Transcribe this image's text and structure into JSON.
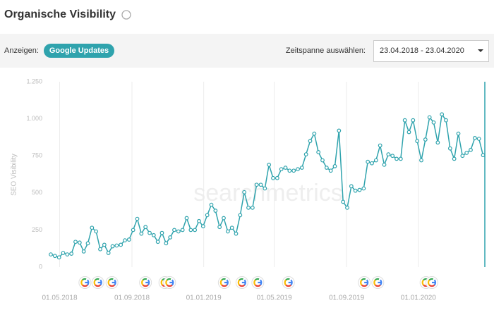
{
  "header": {
    "title": "Organische Visibility"
  },
  "toolbar": {
    "show_label": "Anzeigen:",
    "toggle": "Google Updates",
    "range_label": "Zeitspanne auswählen:",
    "range_value": "23.04.2018 - 23.04.2020"
  },
  "chart_data": {
    "type": "line",
    "ylabel": "SEO Visibility",
    "watermark": "searchmetrics",
    "color": "#2fa3ad",
    "grid": "x",
    "x": [
      "2018-04-16",
      "2018-04-23",
      "2018-04-30",
      "2018-05-07",
      "2018-05-14",
      "2018-05-21",
      "2018-05-28",
      "2018-06-04",
      "2018-06-11",
      "2018-06-18",
      "2018-06-25",
      "2018-07-02",
      "2018-07-09",
      "2018-07-16",
      "2018-07-23",
      "2018-07-30",
      "2018-08-06",
      "2018-08-13",
      "2018-08-20",
      "2018-08-27",
      "2018-09-03",
      "2018-09-10",
      "2018-09-17",
      "2018-09-24",
      "2018-10-01",
      "2018-10-08",
      "2018-10-15",
      "2018-10-22",
      "2018-10-29",
      "2018-11-05",
      "2018-11-12",
      "2018-11-19",
      "2018-11-26",
      "2018-12-03",
      "2018-12-10",
      "2018-12-17",
      "2018-12-24",
      "2018-12-31",
      "2019-01-07",
      "2019-01-14",
      "2019-01-21",
      "2019-01-28",
      "2019-02-04",
      "2019-02-11",
      "2019-02-18",
      "2019-02-25",
      "2019-03-04",
      "2019-03-11",
      "2019-03-18",
      "2019-03-25",
      "2019-04-01",
      "2019-04-08",
      "2019-04-15",
      "2019-04-22",
      "2019-04-29",
      "2019-05-06",
      "2019-05-13",
      "2019-05-20",
      "2019-05-27",
      "2019-06-03",
      "2019-06-10",
      "2019-06-17",
      "2019-06-24",
      "2019-07-01",
      "2019-07-08",
      "2019-07-15",
      "2019-07-22",
      "2019-07-29",
      "2019-08-05",
      "2019-08-12",
      "2019-08-19",
      "2019-08-26",
      "2019-09-02",
      "2019-09-09",
      "2019-09-16",
      "2019-09-23",
      "2019-09-30",
      "2019-10-07",
      "2019-10-14",
      "2019-10-21",
      "2019-10-28",
      "2019-11-04",
      "2019-11-11",
      "2019-11-18",
      "2019-11-25",
      "2019-12-02",
      "2019-12-09",
      "2019-12-16",
      "2019-12-23",
      "2019-12-30",
      "2020-01-06",
      "2020-01-13",
      "2020-01-20",
      "2020-01-27",
      "2020-02-03",
      "2020-02-10",
      "2020-02-17",
      "2020-02-24",
      "2020-03-02",
      "2020-03-09",
      "2020-03-16",
      "2020-03-23",
      "2020-03-30",
      "2020-04-06",
      "2020-04-13",
      "2020-04-20"
    ],
    "values": [
      85,
      75,
      65,
      95,
      85,
      90,
      170,
      165,
      105,
      160,
      265,
      240,
      120,
      150,
      95,
      140,
      145,
      150,
      180,
      185,
      250,
      325,
      225,
      270,
      230,
      215,
      170,
      230,
      160,
      200,
      250,
      240,
      250,
      330,
      250,
      250,
      310,
      275,
      350,
      420,
      380,
      270,
      330,
      240,
      265,
      225,
      350,
      505,
      400,
      400,
      555,
      555,
      530,
      690,
      600,
      600,
      660,
      670,
      650,
      650,
      660,
      670,
      760,
      850,
      900,
      775,
      720,
      670,
      650,
      680,
      920,
      440,
      400,
      545,
      515,
      520,
      530,
      710,
      700,
      720,
      820,
      690,
      760,
      750,
      730,
      730,
      990,
      910,
      990,
      850,
      720,
      860,
      1010,
      975,
      840,
      1030,
      990,
      800,
      730,
      900,
      750,
      770,
      790,
      870,
      865,
      755
    ],
    "xlim": [
      "2018-04-16",
      "2020-04-23"
    ],
    "xticks": [
      {
        "value": "2018-05-01",
        "label": "01.05.2018"
      },
      {
        "value": "2018-09-01",
        "label": "01.09.2018"
      },
      {
        "value": "2019-01-01",
        "label": "01.01.2019"
      },
      {
        "value": "2019-05-01",
        "label": "01.05.2019"
      },
      {
        "value": "2019-09-01",
        "label": "01.09.2019"
      },
      {
        "value": "2020-01-01",
        "label": "01.01.2020"
      }
    ],
    "ylim": [
      0,
      1250
    ],
    "yticks": [
      0,
      250,
      500,
      750,
      {
        "value": 1000,
        "label": "1.000"
      },
      {
        "value": 1250,
        "label": "1.250"
      }
    ],
    "google_updates": [
      "2018-06-13",
      "2018-07-05",
      "2018-07-29",
      "2018-09-24",
      "2018-10-27",
      "2018-11-04",
      "2019-02-05",
      "2019-03-07",
      "2019-04-03",
      "2019-05-25",
      "2019-10-01",
      "2019-10-24",
      "2020-01-14",
      "2020-01-24"
    ]
  }
}
